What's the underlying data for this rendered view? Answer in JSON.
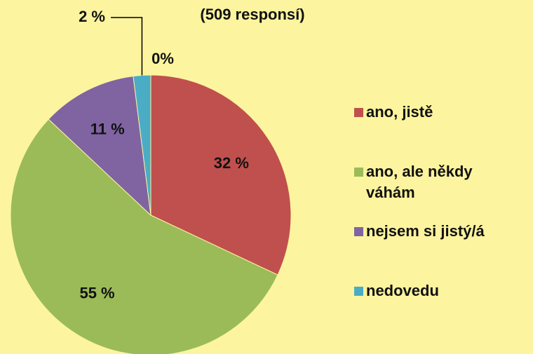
{
  "chart_data": {
    "type": "pie",
    "subtitle": "(509 responsí)",
    "categories": [
      "ano, jistě",
      "ano, ale někdy váhám",
      "nejsem si jistý/á",
      "nedovedu",
      null
    ],
    "values": [
      32,
      55,
      11,
      2,
      0
    ],
    "value_labels": [
      "32 %",
      "55 %",
      "11 %",
      "2 %",
      "0%"
    ],
    "colors": [
      "#c0504d",
      "#9bbb59",
      "#8064a2",
      "#4bacc6",
      "#4bacc6"
    ],
    "legend": "right"
  }
}
